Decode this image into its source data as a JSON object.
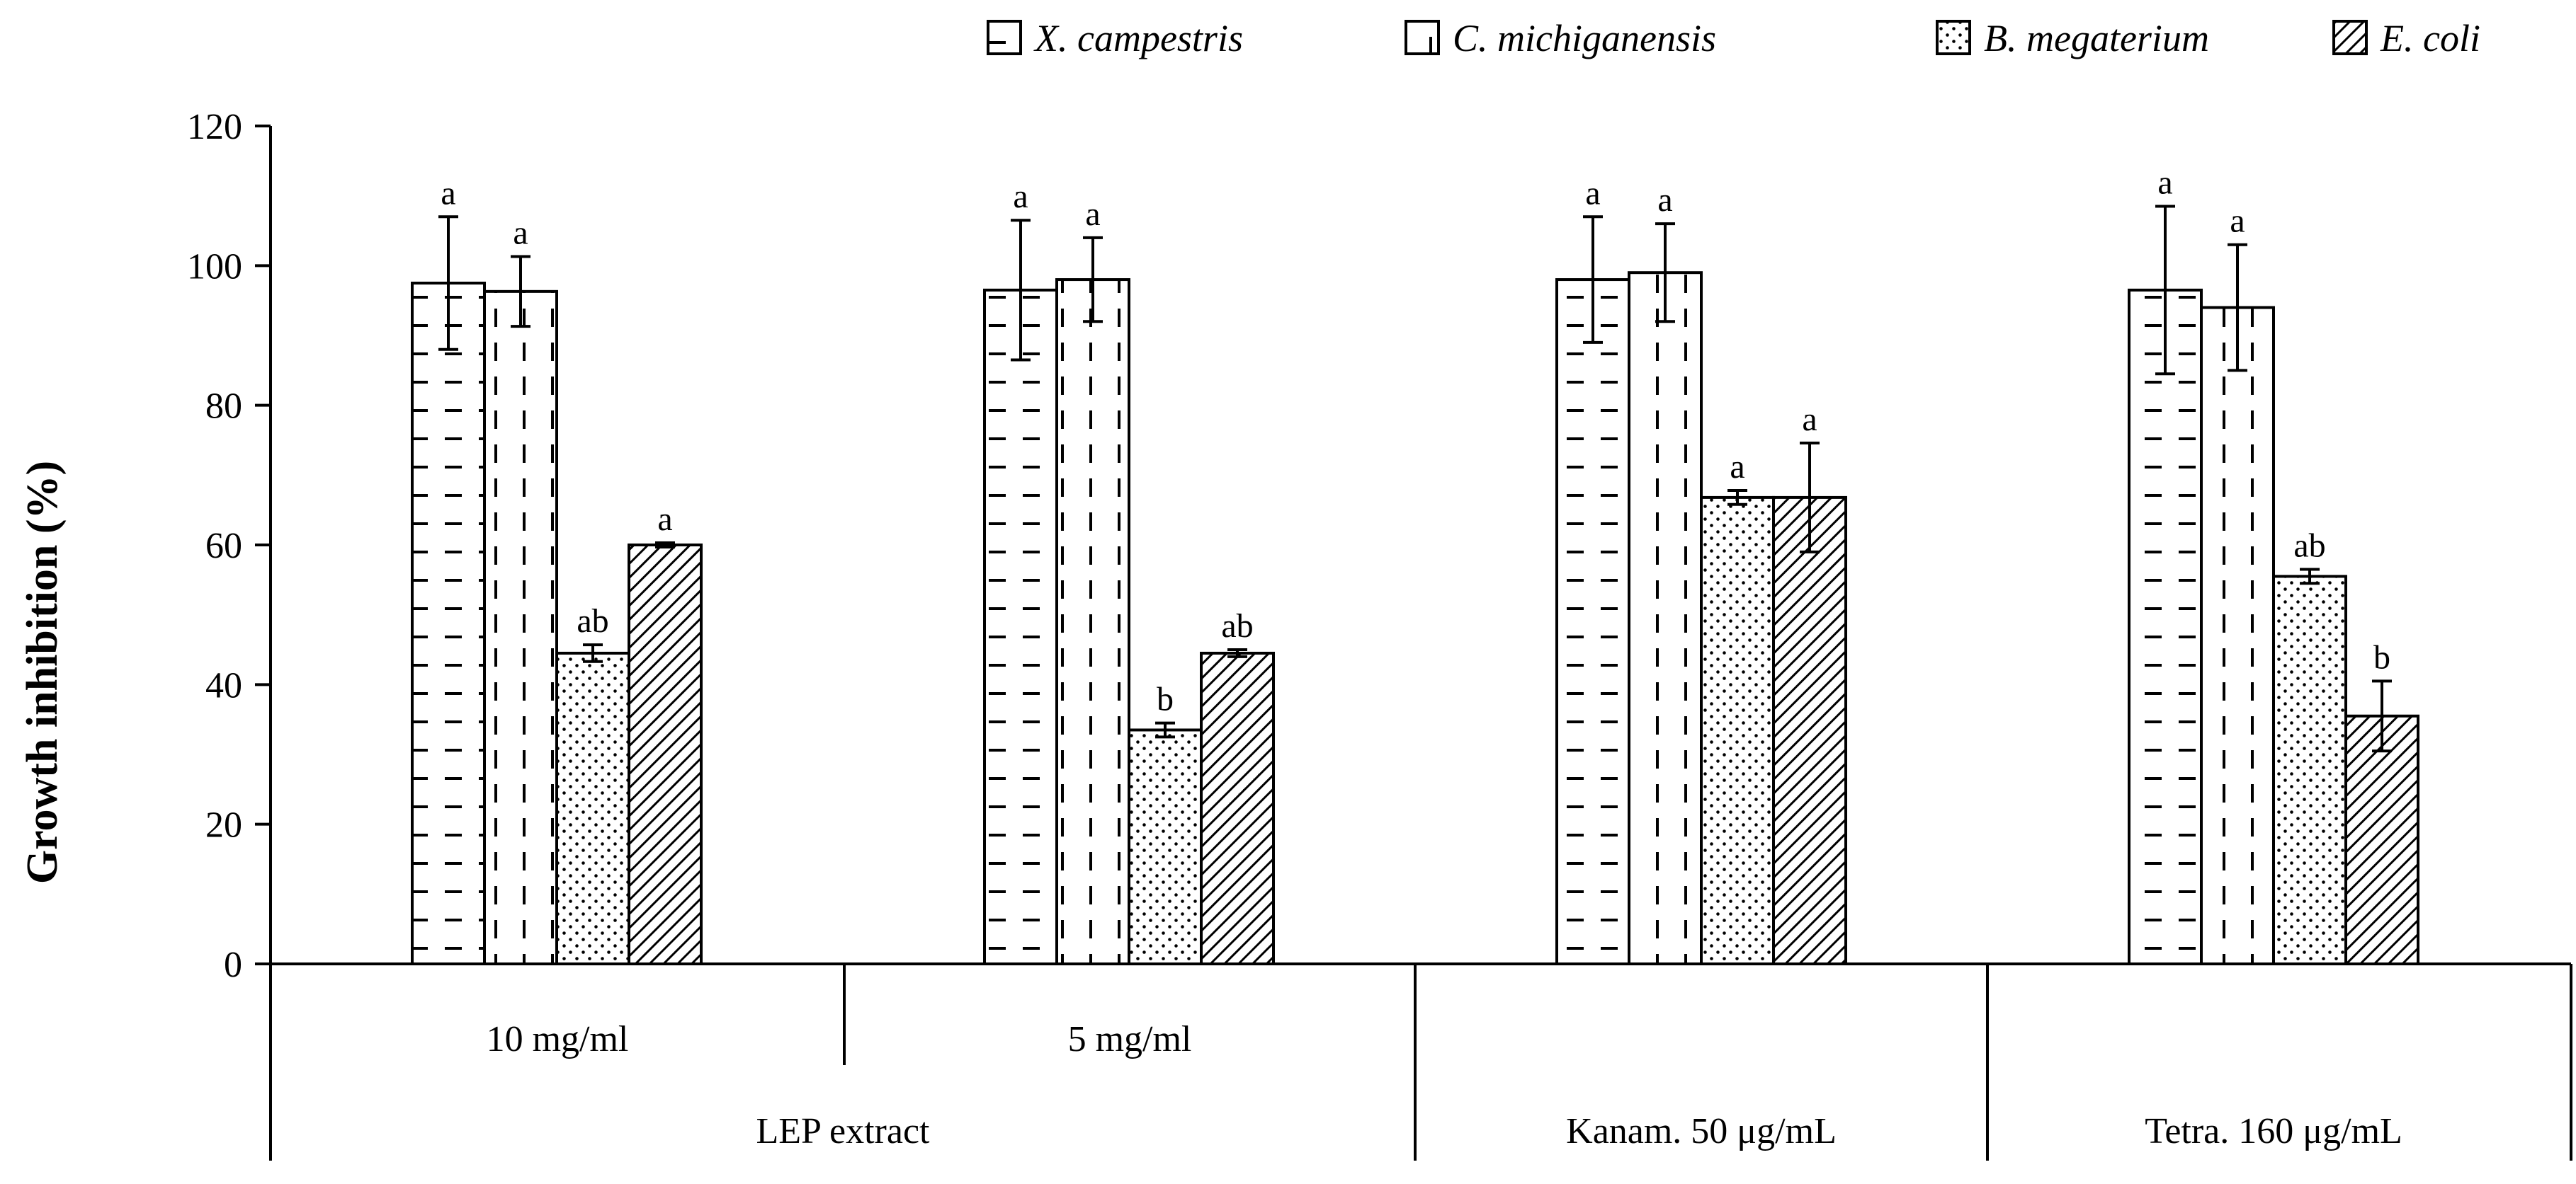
{
  "chart_data": {
    "type": "bar",
    "title": "",
    "xlabel": "",
    "ylabel": "Growth inhibition (%)",
    "ylim": [
      0,
      120
    ],
    "yticks": [
      0,
      20,
      40,
      60,
      80,
      100,
      120
    ],
    "grid": false,
    "legend_position": "top-right",
    "categories": [
      "10 mg/ml",
      "5 mg/ml",
      "Kanam. 50 μg/mL",
      "Tetra. 160 μg/mL"
    ],
    "category_groups": [
      {
        "label": "10 mg/ml",
        "parent": "LEP extract"
      },
      {
        "label": "5 mg/ml",
        "parent": "LEP extract"
      },
      {
        "label": "",
        "parent": "Kanam. 50 μg/mL"
      },
      {
        "label": "",
        "parent": "Tetra. 160 μg/mL"
      }
    ],
    "series": [
      {
        "name": "X. campestris",
        "pattern": "dash-horizontal",
        "values": [
          97.5,
          96.5,
          98,
          96.5
        ],
        "errors": [
          9.5,
          10,
          9,
          12
        ],
        "labels": [
          "a",
          "a",
          "a",
          "a"
        ]
      },
      {
        "name": "C. michiganensis",
        "pattern": "dash-vertical",
        "values": [
          96.3,
          98,
          99,
          94
        ],
        "errors": [
          5,
          6,
          7,
          9
        ],
        "labels": [
          "a",
          "a",
          "a",
          "a"
        ]
      },
      {
        "name": "B. megaterium",
        "pattern": "dots",
        "values": [
          44.5,
          33.5,
          66.8,
          55.5
        ],
        "errors": [
          1.2,
          1,
          1,
          1
        ],
        "labels": [
          "ab",
          "b",
          "a",
          "ab"
        ]
      },
      {
        "name": "E. coli",
        "pattern": "diagonal",
        "values": [
          60,
          44.5,
          66.8,
          35.5
        ],
        "errors": [
          0.3,
          0.5,
          7.8,
          5
        ],
        "labels": [
          "a",
          "ab",
          "a",
          "b"
        ]
      }
    ]
  }
}
